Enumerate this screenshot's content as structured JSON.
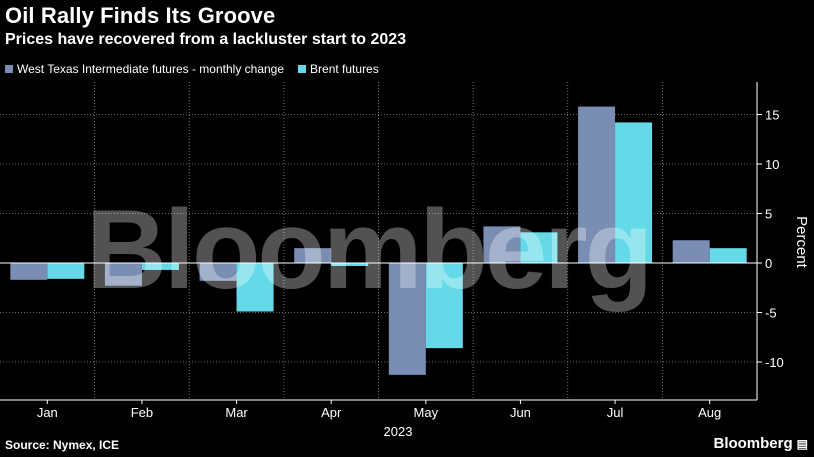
{
  "header": {
    "title": "Oil Rally Finds Its Groove",
    "subtitle": "Prices have recovered from a lackluster start to 2023"
  },
  "footer": {
    "source": "Source: Nymex, ICE",
    "brand": "Bloomberg"
  },
  "watermark": "Bloomberg",
  "colors": {
    "background": "#000000",
    "wti": "#7a8db3",
    "brent": "#66d9e8",
    "grid": "#8c8c8c"
  },
  "chart_data": {
    "type": "bar",
    "title": "Oil Rally Finds Its Groove",
    "subtitle": "Prices have recovered from a lackluster start to 2023",
    "categories": [
      "Jan",
      "Feb",
      "Mar",
      "Apr",
      "May",
      "Jun",
      "Jul",
      "Aug"
    ],
    "xlabel": "2023",
    "ylabel": "Percent",
    "ylim": [
      -14,
      18
    ],
    "yticks": [
      -10,
      -5,
      0,
      5,
      10,
      15
    ],
    "y_axis_side": "right",
    "grid": true,
    "legend_position": "top-left",
    "series": [
      {
        "name": "West Texas Intermediate futures - monthly change",
        "color": "#7a8db3",
        "values": [
          -1.7,
          -2.3,
          -1.8,
          1.5,
          -11.3,
          3.7,
          15.8,
          2.3
        ]
      },
      {
        "name": "Brent futures",
        "color": "#66d9e8",
        "values": [
          -1.6,
          -0.7,
          -4.9,
          -0.3,
          -8.6,
          3.1,
          14.2,
          1.5
        ]
      }
    ]
  }
}
